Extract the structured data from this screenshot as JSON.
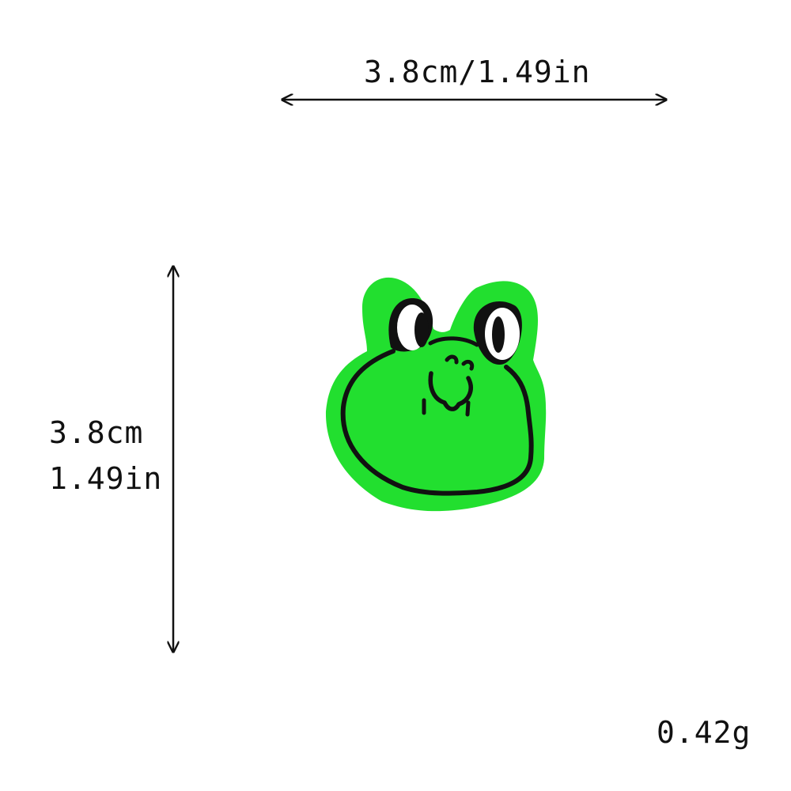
{
  "dimensions": {
    "width": "3.8cm/1.49in",
    "height_cm": "3.8cm",
    "height_in": "1.49in",
    "weight": "0.42g"
  },
  "patch": {
    "subject": "frog-face-patch",
    "colors": {
      "body": "#22df2f",
      "outline": "#111111",
      "eye_white": "#ffffff"
    }
  }
}
